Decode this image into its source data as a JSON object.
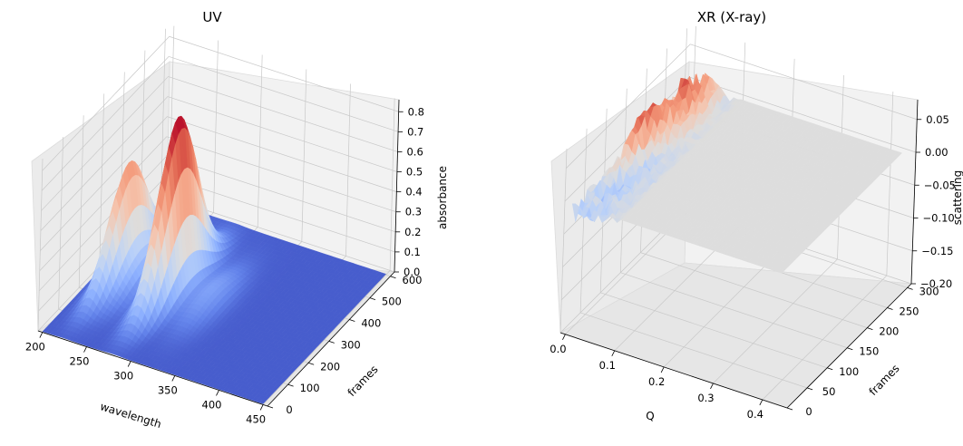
{
  "chart_data": [
    {
      "type": "surface",
      "title": "UV",
      "xlabel": "wavelength",
      "ylabel": "frames",
      "zlabel": "absorbance",
      "x_ticks": [
        200,
        250,
        300,
        350,
        400,
        450
      ],
      "y_ticks": [
        0,
        100,
        200,
        300,
        400,
        500,
        600
      ],
      "z_ticks": [
        "0.0",
        "0.1",
        "0.2",
        "0.3",
        "0.4",
        "0.5",
        "0.6",
        "0.7",
        "0.8"
      ],
      "xlim": [
        195,
        455
      ],
      "ylim": [
        0,
        620
      ],
      "zlim": [
        0,
        0.86
      ],
      "grid": true,
      "colormap": "coolwarm",
      "peaks": [
        {
          "wavelength": 225,
          "frame": 300,
          "absorbance": 0.55
        },
        {
          "wavelength": 280,
          "frame": 300,
          "absorbance": 0.86
        }
      ]
    },
    {
      "type": "surface",
      "title": "XR (X-ray)",
      "xlabel": "Q",
      "ylabel": "frames",
      "zlabel": "scattering",
      "x_ticks": [
        "0.0",
        "0.1",
        "0.2",
        "0.3",
        "0.4"
      ],
      "y_ticks": [
        0,
        50,
        100,
        150,
        200,
        250,
        300
      ],
      "z_ticks": [
        "0.05",
        "0.00",
        "−0.05",
        "−0.10",
        "−0.15",
        "−0.20"
      ],
      "xlim": [
        -0.01,
        0.45
      ],
      "ylim": [
        0,
        310
      ],
      "zlim": [
        -0.2,
        0.08
      ],
      "grid": true,
      "colormap": "coolwarm",
      "peaks": [
        {
          "Q": 0.02,
          "frame": 150,
          "scattering": 0.05
        },
        {
          "Q": 0.04,
          "frame": 240,
          "scattering": 0.06
        }
      ]
    }
  ]
}
